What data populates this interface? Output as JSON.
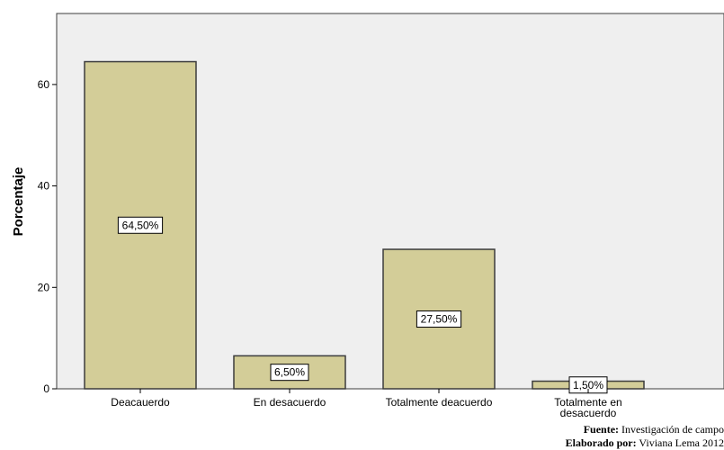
{
  "chart_data": {
    "type": "bar",
    "title": "",
    "xlabel": "",
    "ylabel": "Porcentaje",
    "categories": [
      "Deacauerdo",
      "En desacuerdo",
      "Totalmente deacuerdo",
      "Totalmente en desacuerdo"
    ],
    "values": [
      64.5,
      6.5,
      27.5,
      1.5
    ],
    "data_labels": [
      "64,50%",
      "6,50%",
      "27,50%",
      "1,50%"
    ],
    "ylim": [
      0,
      74
    ],
    "yticks": [
      0,
      20,
      40,
      60
    ],
    "grid": false,
    "bar_color": "#d3cd98",
    "plot_background": "#efefef",
    "bar_edge_color": "#3c3c3c"
  },
  "notes": {
    "source_label": "Fuente:",
    "source_text": " Investigación de campo",
    "author_label": "Elaborado por:",
    "author_text": " Viviana Lema 2012"
  }
}
